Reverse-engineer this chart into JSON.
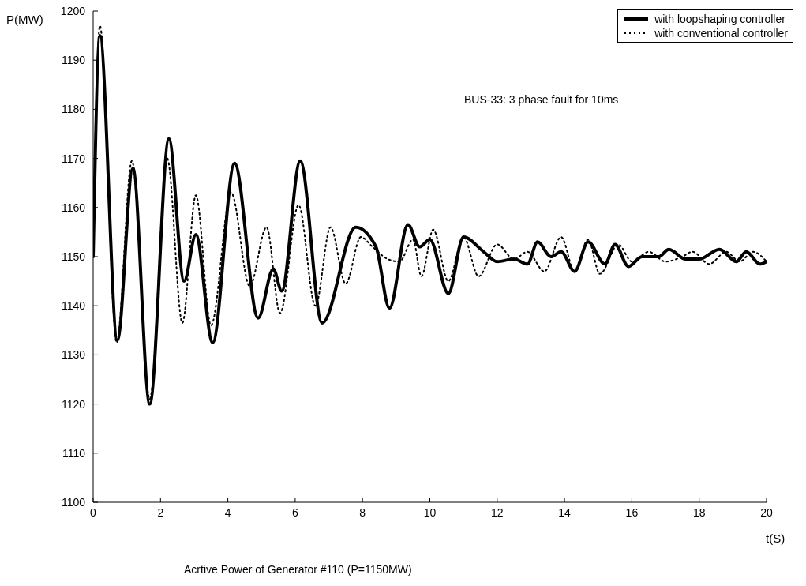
{
  "chart_data": {
    "type": "line",
    "xlabel": "t(S)",
    "ylabel": "P(MW)",
    "annotations": [
      "BUS-33: 3 phase fault for 10ms",
      "Acrtive Power of Generator #110 (P=1150MW)"
    ],
    "xlim": [
      0,
      20
    ],
    "xticks": [
      0,
      2,
      4,
      6,
      8,
      10,
      12,
      14,
      16,
      18,
      20
    ],
    "ylim": [
      1100,
      1200
    ],
    "yticks": [
      1100,
      1110,
      1120,
      1130,
      1140,
      1150,
      1160,
      1170,
      1180,
      1190,
      1200
    ],
    "grid": false,
    "legend": "top right",
    "marker": "none",
    "series": [
      {
        "name": "with loopshaping controller",
        "color": "#000000",
        "line_style": "solid",
        "x": [
          0,
          0.2,
          0.72,
          1.18,
          1.68,
          2.25,
          2.7,
          3.05,
          3.55,
          4.2,
          4.9,
          5.35,
          5.6,
          6.15,
          6.8,
          7.8,
          8.4,
          8.8,
          9.35,
          9.7,
          10,
          10.55,
          11,
          11.6,
          12,
          12.5,
          12.9,
          13.2,
          13.6,
          13.9,
          14.3,
          14.7,
          15.2,
          15.5,
          15.9,
          16.3,
          16.8,
          17.1,
          17.6,
          18,
          18.6,
          19.1,
          19.4,
          19.8,
          20
        ],
        "values": [
          1150,
          1195,
          1133,
          1168,
          1120,
          1174,
          1145,
          1154.5,
          1132.5,
          1169,
          1137.5,
          1147.5,
          1143,
          1169.5,
          1136.5,
          1156,
          1152,
          1139.5,
          1156.5,
          1152,
          1153.5,
          1142.5,
          1154,
          1151,
          1149,
          1149.5,
          1148.5,
          1153,
          1150,
          1151,
          1147,
          1153,
          1148.5,
          1152.5,
          1148,
          1150,
          1150,
          1151.5,
          1149.5,
          1149.5,
          1151.5,
          1149,
          1151,
          1148.5,
          1149
        ]
      },
      {
        "name": "with conventional controller",
        "color": "#000000",
        "line_style": "dotted",
        "x": [
          0,
          0.2,
          0.7,
          1.15,
          1.68,
          2.2,
          2.65,
          3.05,
          3.5,
          4.1,
          4.65,
          5.15,
          5.55,
          6.1,
          6.6,
          7.05,
          7.5,
          7.95,
          8.3,
          8.75,
          9.1,
          9.5,
          9.75,
          10.1,
          10.55,
          11,
          11.45,
          12,
          12.5,
          12.9,
          13.4,
          13.9,
          14.3,
          14.7,
          15.05,
          15.6,
          16,
          16.5,
          17,
          17.5,
          17.8,
          18.3,
          18.8,
          19.2,
          19.6,
          20
        ],
        "values": [
          1150,
          1197,
          1132.5,
          1169.5,
          1121,
          1170,
          1136.5,
          1162.5,
          1136,
          1163,
          1144,
          1156,
          1138.5,
          1160.5,
          1140,
          1156,
          1144.5,
          1154,
          1152,
          1149.5,
          1149,
          1153.5,
          1146,
          1155.5,
          1145,
          1154,
          1146,
          1152.5,
          1149.5,
          1151,
          1147,
          1154,
          1147,
          1153.5,
          1146.5,
          1152.5,
          1149,
          1151,
          1149,
          1150,
          1151,
          1148.5,
          1151,
          1149,
          1151,
          1149
        ]
      }
    ]
  }
}
